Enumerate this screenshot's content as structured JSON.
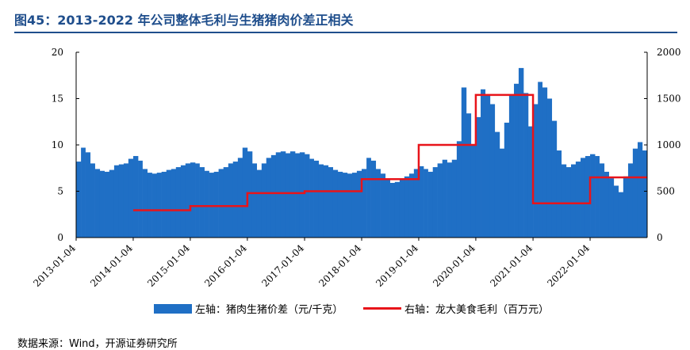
{
  "header": {
    "title": "图45：2013-2022 年公司整体毛利与生猪猪肉价差正相关"
  },
  "legend": {
    "bar_label": "左轴：猪肉生猪价差（元/千克）",
    "line_label": "右轴：龙大美食毛利（百万元）"
  },
  "source": {
    "text": "数据来源：Wind，开源证券研究所"
  },
  "colors": {
    "bar": "#1f6fc5",
    "line": "#e8141a",
    "title": "#1f4e8c"
  },
  "chart_data": {
    "type": "bar",
    "x_start": "2013-01-04",
    "x_end": "2023-01-04",
    "x_tick_labels": [
      "2013-01-04",
      "2014-01-04",
      "2015-01-04",
      "2016-01-04",
      "2017-01-04",
      "2018-01-04",
      "2019-01-04",
      "2020-01-04",
      "2021-01-04",
      "2022-01-04"
    ],
    "y_left": {
      "ticks": [
        "0",
        "5",
        "10",
        "15",
        "20"
      ],
      "ylim": [
        0,
        20
      ]
    },
    "y_right": {
      "ticks": [
        "0",
        "500",
        "1000",
        "1500",
        "2000"
      ],
      "ylim": [
        0,
        2000
      ]
    },
    "series": [
      {
        "name": "左轴：猪肉生猪价差（元/千克）",
        "axis": "left",
        "type": "bar",
        "points": [
          [
            "2013-01-04",
            8.2
          ],
          [
            "2013-02-04",
            9.7
          ],
          [
            "2013-03-04",
            9.2
          ],
          [
            "2013-04-04",
            8.0
          ],
          [
            "2013-05-04",
            7.4
          ],
          [
            "2013-06-04",
            7.2
          ],
          [
            "2013-07-04",
            7.1
          ],
          [
            "2013-08-04",
            7.3
          ],
          [
            "2013-09-04",
            7.8
          ],
          [
            "2013-10-04",
            7.9
          ],
          [
            "2013-11-04",
            8.0
          ],
          [
            "2013-12-04",
            8.5
          ],
          [
            "2014-01-04",
            8.8
          ],
          [
            "2014-02-04",
            8.3
          ],
          [
            "2014-03-04",
            7.4
          ],
          [
            "2014-04-04",
            7.0
          ],
          [
            "2014-05-04",
            6.9
          ],
          [
            "2014-06-04",
            7.0
          ],
          [
            "2014-07-04",
            7.1
          ],
          [
            "2014-08-04",
            7.3
          ],
          [
            "2014-09-04",
            7.4
          ],
          [
            "2014-10-04",
            7.6
          ],
          [
            "2014-11-04",
            7.8
          ],
          [
            "2014-12-04",
            8.0
          ],
          [
            "2015-01-04",
            8.1
          ],
          [
            "2015-02-04",
            8.0
          ],
          [
            "2015-03-04",
            7.6
          ],
          [
            "2015-04-04",
            7.2
          ],
          [
            "2015-05-04",
            7.0
          ],
          [
            "2015-06-04",
            7.1
          ],
          [
            "2015-07-04",
            7.4
          ],
          [
            "2015-08-04",
            7.6
          ],
          [
            "2015-09-04",
            8.0
          ],
          [
            "2015-10-04",
            8.2
          ],
          [
            "2015-11-04",
            8.6
          ],
          [
            "2015-12-04",
            9.7
          ],
          [
            "2016-01-04",
            9.3
          ],
          [
            "2016-02-04",
            8.0
          ],
          [
            "2016-03-04",
            7.3
          ],
          [
            "2016-04-04",
            8.0
          ],
          [
            "2016-05-04",
            8.6
          ],
          [
            "2016-06-04",
            8.9
          ],
          [
            "2016-07-04",
            9.2
          ],
          [
            "2016-08-04",
            9.3
          ],
          [
            "2016-09-04",
            9.1
          ],
          [
            "2016-10-04",
            9.3
          ],
          [
            "2016-11-04",
            9.1
          ],
          [
            "2016-12-04",
            9.2
          ],
          [
            "2017-01-04",
            9.0
          ],
          [
            "2017-02-04",
            8.5
          ],
          [
            "2017-03-04",
            8.3
          ],
          [
            "2017-04-04",
            7.9
          ],
          [
            "2017-05-04",
            7.8
          ],
          [
            "2017-06-04",
            7.6
          ],
          [
            "2017-07-04",
            7.3
          ],
          [
            "2017-08-04",
            7.1
          ],
          [
            "2017-09-04",
            7.0
          ],
          [
            "2017-10-04",
            6.9
          ],
          [
            "2017-11-04",
            7.0
          ],
          [
            "2017-12-04",
            7.2
          ],
          [
            "2018-01-04",
            7.4
          ],
          [
            "2018-02-04",
            8.6
          ],
          [
            "2018-03-04",
            8.3
          ],
          [
            "2018-04-04",
            7.4
          ],
          [
            "2018-05-04",
            6.9
          ],
          [
            "2018-06-04",
            6.2
          ],
          [
            "2018-07-04",
            5.9
          ],
          [
            "2018-08-04",
            6.0
          ],
          [
            "2018-09-04",
            6.4
          ],
          [
            "2018-10-04",
            6.6
          ],
          [
            "2018-11-04",
            6.9
          ],
          [
            "2018-12-04",
            7.4
          ],
          [
            "2019-01-04",
            7.7
          ],
          [
            "2019-02-04",
            7.4
          ],
          [
            "2019-03-04",
            7.1
          ],
          [
            "2019-04-04",
            7.6
          ],
          [
            "2019-05-04",
            8.0
          ],
          [
            "2019-06-04",
            8.4
          ],
          [
            "2019-07-04",
            8.1
          ],
          [
            "2019-08-04",
            8.4
          ],
          [
            "2019-09-04",
            10.4
          ],
          [
            "2019-10-04",
            16.2
          ],
          [
            "2019-11-04",
            13.4
          ],
          [
            "2019-12-04",
            10.0
          ],
          [
            "2020-01-04",
            13.0
          ],
          [
            "2020-02-04",
            16.0
          ],
          [
            "2020-03-04",
            15.4
          ],
          [
            "2020-04-04",
            14.4
          ],
          [
            "2020-05-04",
            11.4
          ],
          [
            "2020-06-04",
            9.6
          ],
          [
            "2020-07-04",
            12.4
          ],
          [
            "2020-08-04",
            15.4
          ],
          [
            "2020-09-04",
            16.6
          ],
          [
            "2020-10-04",
            18.3
          ],
          [
            "2020-11-04",
            15.6
          ],
          [
            "2020-12-04",
            12.0
          ],
          [
            "2021-01-04",
            14.4
          ],
          [
            "2021-02-04",
            16.8
          ],
          [
            "2021-03-04",
            16.2
          ],
          [
            "2021-04-04",
            15.0
          ],
          [
            "2021-05-04",
            12.6
          ],
          [
            "2021-06-04",
            9.4
          ],
          [
            "2021-07-04",
            7.9
          ],
          [
            "2021-08-04",
            7.6
          ],
          [
            "2021-09-04",
            7.9
          ],
          [
            "2021-10-04",
            8.2
          ],
          [
            "2021-11-04",
            8.6
          ],
          [
            "2021-12-04",
            8.8
          ],
          [
            "2022-01-04",
            9.0
          ],
          [
            "2022-02-04",
            8.8
          ],
          [
            "2022-03-04",
            8.0
          ],
          [
            "2022-04-04",
            7.1
          ],
          [
            "2022-05-04",
            6.4
          ],
          [
            "2022-06-04",
            5.6
          ],
          [
            "2022-07-04",
            4.9
          ],
          [
            "2022-08-04",
            6.6
          ],
          [
            "2022-09-04",
            8.0
          ],
          [
            "2022-10-04",
            9.6
          ],
          [
            "2022-11-04",
            10.3
          ],
          [
            "2022-12-04",
            9.4
          ]
        ]
      },
      {
        "name": "右轴：龙大美食毛利（百万元）",
        "axis": "right",
        "type": "step-line",
        "points": [
          [
            "2014-01-04",
            295
          ],
          [
            "2015-01-04",
            340
          ],
          [
            "2016-01-04",
            480
          ],
          [
            "2017-01-04",
            500
          ],
          [
            "2018-01-04",
            630
          ],
          [
            "2019-01-04",
            1000
          ],
          [
            "2020-01-04",
            1540
          ],
          [
            "2021-01-04",
            370
          ],
          [
            "2022-01-04",
            650
          ],
          [
            "2023-01-04",
            650
          ]
        ]
      }
    ],
    "grid": false
  }
}
